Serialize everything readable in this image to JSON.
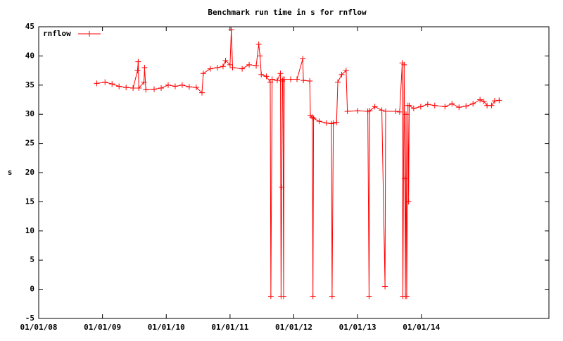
{
  "chart_data": {
    "type": "line",
    "title": "Benchmark run time in s for rnflow",
    "y_label": "s",
    "xlim": [
      2008,
      2016
    ],
    "ylim": [
      -5,
      45
    ],
    "xticks": [
      {
        "value": 2008,
        "label": "01/01/08"
      },
      {
        "value": 2009,
        "label": "01/01/09"
      },
      {
        "value": 2010,
        "label": "01/01/10"
      },
      {
        "value": 2011,
        "label": "01/01/11"
      },
      {
        "value": 2012,
        "label": "01/01/12"
      },
      {
        "value": 2013,
        "label": "01/01/13"
      },
      {
        "value": 2014,
        "label": "01/01/14"
      }
    ],
    "yticks": [
      -5,
      0,
      5,
      10,
      15,
      20,
      25,
      30,
      35,
      40,
      45
    ],
    "legend": "top-left",
    "series": [
      {
        "name": "rnflow",
        "color": "#ff0000",
        "x": [
          2008.91,
          2009.04,
          2009.15,
          2009.26,
          2009.37,
          2009.48,
          2009.55,
          2009.56,
          2009.57,
          2009.65,
          2009.66,
          2009.68,
          2009.81,
          2009.92,
          2010.03,
          2010.14,
          2010.25,
          2010.36,
          2010.47,
          2010.56,
          2010.58,
          2010.69,
          2010.8,
          2010.89,
          2010.93,
          2011.0,
          2011.02,
          2011.04,
          2011.19,
          2011.3,
          2011.41,
          2011.45,
          2011.47,
          2011.49,
          2011.57,
          2011.63,
          2011.64,
          2011.66,
          2011.74,
          2011.79,
          2011.8,
          2011.81,
          2011.82,
          2011.83,
          2011.84,
          2011.85,
          2011.95,
          2012.05,
          2012.14,
          2012.15,
          2012.25,
          2012.26,
          2012.29,
          2012.3,
          2012.31,
          2012.4,
          2012.51,
          2012.59,
          2012.6,
          2012.62,
          2012.67,
          2012.69,
          2012.75,
          2012.82,
          2012.84,
          2013.0,
          2013.16,
          2013.18,
          2013.19,
          2013.27,
          2013.38,
          2013.43,
          2013.44,
          2013.6,
          2013.66,
          2013.7,
          2013.71,
          2013.73,
          2013.74,
          2013.75,
          2013.76,
          2013.77,
          2013.79,
          2013.8,
          2013.81,
          2013.88,
          2013.99,
          2014.1,
          2014.21,
          2014.37,
          2014.48,
          2014.59,
          2014.7,
          2014.81,
          2014.92,
          2014.98,
          2015.03,
          2015.1,
          2015.15,
          2015.22
        ],
        "values": [
          35.3,
          35.5,
          35.2,
          34.8,
          34.6,
          34.5,
          37.5,
          39,
          34.5,
          35.5,
          38,
          34.2,
          34.3,
          34.5,
          35,
          34.8,
          35,
          34.7,
          34.6,
          33.7,
          37,
          37.8,
          38,
          38.2,
          39.2,
          38.5,
          44.5,
          38,
          37.8,
          38.5,
          38.3,
          42,
          40,
          36.8,
          36.5,
          35.5,
          -1.2,
          36,
          35.8,
          37,
          -1.2,
          17.5,
          35.7,
          36,
          -1.2,
          36,
          36,
          36,
          39.5,
          35.8,
          35.7,
          29.8,
          29.5,
          -1.2,
          29.3,
          28.8,
          28.5,
          28.4,
          -1.2,
          28.5,
          28.6,
          35.5,
          36.8,
          37.5,
          30.5,
          30.6,
          30.5,
          -1.2,
          30.6,
          31.3,
          30.7,
          0.5,
          30.5,
          30.5,
          30.4,
          38.8,
          -1.2,
          38.5,
          19,
          -1.2,
          30,
          -1.2,
          31.5,
          15,
          31.5,
          31,
          31.3,
          31.7,
          31.5,
          31.3,
          31.8,
          31.2,
          31.4,
          31.8,
          32.5,
          32.2,
          31.5,
          31.5,
          32.3,
          32.4
        ]
      }
    ]
  }
}
